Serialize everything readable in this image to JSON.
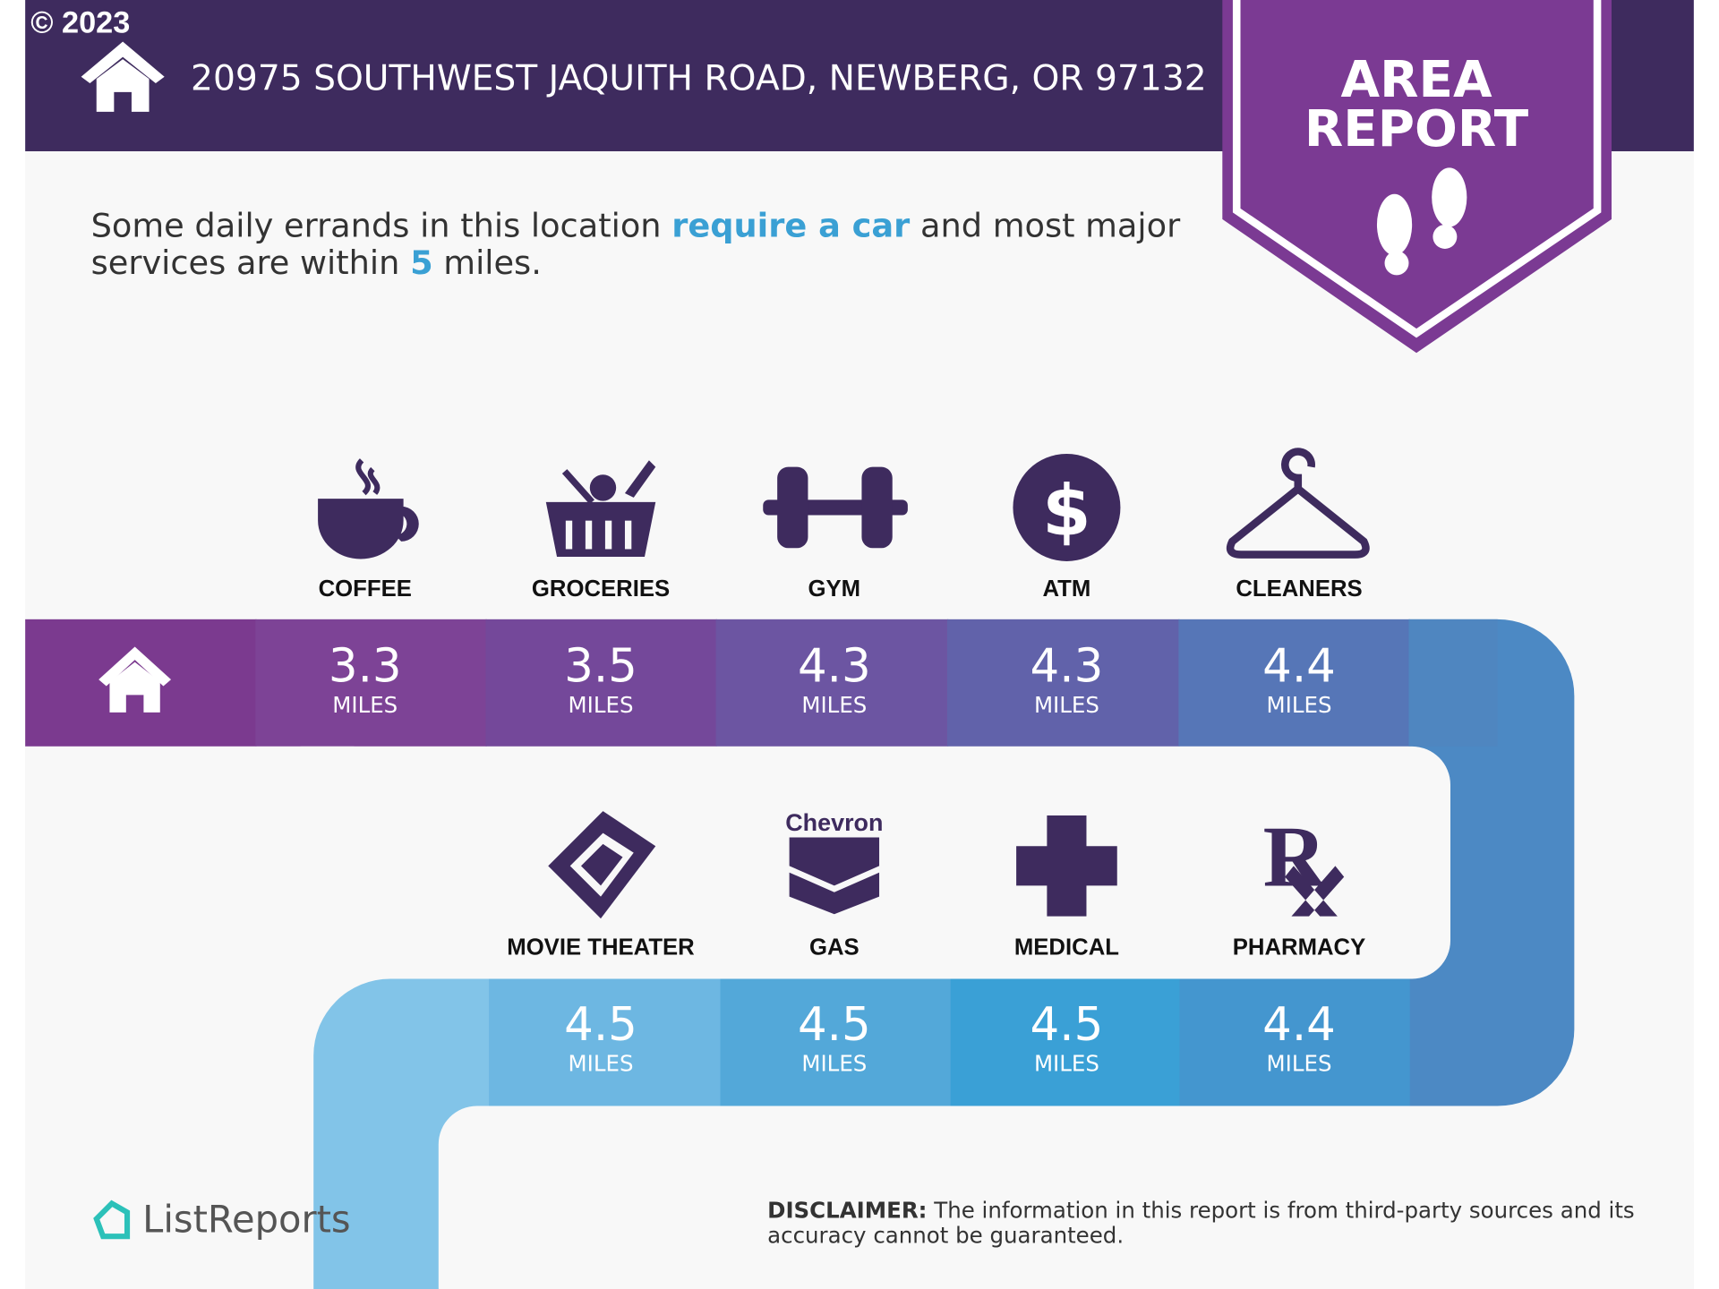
{
  "copyright": "© 2023",
  "header": {
    "address": "20975 SOUTHWEST JAQUITH ROAD, NEWBERG, OR 97132",
    "badge": [
      "AREA",
      "REPORT"
    ]
  },
  "summary": {
    "line1": [
      "Some daily errands in this location ",
      "require a car",
      " and most major"
    ],
    "line2": [
      "services are within ",
      "5",
      " miles."
    ]
  },
  "unit": "MILES",
  "amenities": [
    {
      "name": "COFFEE",
      "distance": 3.3
    },
    {
      "name": "GROCERIES",
      "distance": 3.5
    },
    {
      "name": "GYM",
      "distance": 4.3
    },
    {
      "name": "ATM",
      "distance": 4.3
    },
    {
      "name": "CLEANERS",
      "distance": 4.4
    },
    {
      "name": "MOVIE THEATER",
      "distance": 4.5
    },
    {
      "name": "GAS",
      "distance": 4.5
    },
    {
      "name": "MEDICAL",
      "distance": 4.5
    },
    {
      "name": "PHARMACY",
      "distance": 4.4
    }
  ],
  "gas_brand": "Chevron",
  "brand": "ListReports",
  "disclaimer": {
    "label": "DISCLAIMER:",
    "line1": " The information in this report is from third-party sources and its",
    "line2": "accuracy cannot be guaranteed."
  }
}
